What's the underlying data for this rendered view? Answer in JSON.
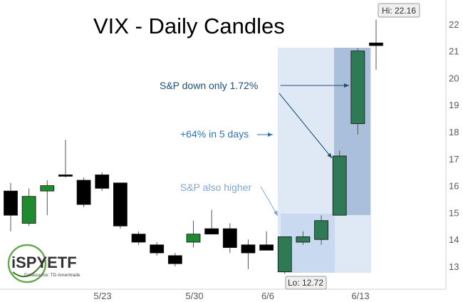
{
  "chart_data": {
    "type": "candlestick",
    "title": "VIX - Daily Candles",
    "ylim": [
      12.3,
      22.8
    ],
    "y_ticks": [
      13,
      14,
      15,
      16,
      17,
      18,
      19,
      20,
      21,
      22
    ],
    "x_tick_labels": [
      "5/23",
      "5/30",
      "6/6",
      "6/13"
    ],
    "candles": [
      {
        "open": 14.9,
        "high": 16.1,
        "low": 14.3,
        "close": 15.8,
        "color": "#000000"
      },
      {
        "open": 14.6,
        "high": 15.9,
        "low": 14.5,
        "close": 15.6,
        "color": "#1f8a2e"
      },
      {
        "open": 15.8,
        "high": 16.2,
        "low": 14.9,
        "close": 16.0,
        "color": "#1f8a2e"
      },
      {
        "open": 16.4,
        "high": 17.7,
        "low": 16.3,
        "close": 16.4,
        "color": "#000000"
      },
      {
        "open": 16.2,
        "high": 16.3,
        "low": 15.2,
        "close": 15.3,
        "color": "#000000"
      },
      {
        "open": 16.4,
        "high": 16.5,
        "low": 15.8,
        "close": 15.9,
        "color": "#000000"
      },
      {
        "open": 16.1,
        "high": 16.1,
        "low": 14.4,
        "close": 14.5,
        "color": "#000000"
      },
      {
        "open": 14.2,
        "high": 14.3,
        "low": 13.8,
        "close": 13.9,
        "color": "#000000"
      },
      {
        "open": 13.8,
        "high": 13.9,
        "low": 13.4,
        "close": 13.5,
        "color": "#000000"
      },
      {
        "open": 13.4,
        "high": 13.5,
        "low": 13.0,
        "close": 13.1,
        "color": "#000000"
      },
      {
        "open": 13.9,
        "high": 14.7,
        "low": 13.7,
        "close": 14.2,
        "color": "#1f8a2e"
      },
      {
        "open": 14.4,
        "high": 15.1,
        "low": 14.2,
        "close": 14.2,
        "color": "#000000"
      },
      {
        "open": 14.4,
        "high": 14.6,
        "low": 13.5,
        "close": 13.7,
        "color": "#000000"
      },
      {
        "open": 13.8,
        "high": 14.0,
        "low": 12.9,
        "close": 13.5,
        "color": "#000000"
      },
      {
        "open": 13.8,
        "high": 14.3,
        "low": 13.6,
        "close": 13.6,
        "color": "#000000"
      },
      {
        "open": 12.8,
        "high": 14.1,
        "low": 12.72,
        "close": 14.1,
        "color": "#2d7a55"
      },
      {
        "open": 13.9,
        "high": 14.3,
        "low": 13.8,
        "close": 14.1,
        "color": "#2d7a55"
      },
      {
        "open": 14.0,
        "high": 14.9,
        "low": 13.8,
        "close": 14.7,
        "color": "#2d7a55"
      },
      {
        "open": 14.9,
        "high": 17.3,
        "low": 14.9,
        "close": 17.1,
        "color": "#2d7a55"
      },
      {
        "open": 18.3,
        "high": 21.1,
        "low": 17.9,
        "close": 21.0,
        "color": "#2d7a55"
      },
      {
        "open": 21.2,
        "high": 22.16,
        "low": 20.3,
        "close": 21.3,
        "color": "#000000"
      }
    ],
    "annotations": [
      {
        "text": "S&P down only 1.72%",
        "color": "#1f4e79"
      },
      {
        "text": "+64% in 5 days",
        "color": "#2e75b6"
      },
      {
        "text": "S&P also higher",
        "color": "#7fa7d6"
      }
    ],
    "hi_label": "Hi: 22.16",
    "lo_label": "Lo: 12.72",
    "grid": false
  },
  "logo": {
    "name": "iSPYETF",
    "source": "Datasource: TD Ameritrade"
  }
}
